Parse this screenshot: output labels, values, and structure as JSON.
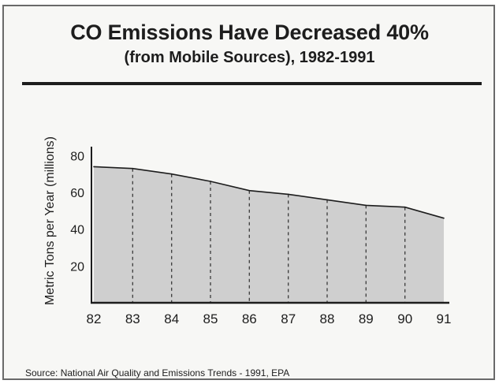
{
  "chart_data": {
    "type": "area",
    "title": "CO Emissions Have Decreased 40%",
    "subtitle": "(from Mobile Sources), 1982-1991",
    "xlabel": "",
    "ylabel": "Metric Tons per Year (millions)",
    "categories": [
      "82",
      "83",
      "84",
      "85",
      "86",
      "87",
      "88",
      "89",
      "90",
      "91"
    ],
    "series": [
      {
        "values": [
          74,
          73,
          70,
          66,
          61,
          59,
          56,
          53,
          52,
          46
        ]
      }
    ],
    "yticks": [
      20,
      40,
      60,
      80
    ],
    "ylim": [
      0,
      85
    ],
    "grid": false,
    "vertical_dashed_lines": true,
    "fill_color": "#cfcfcf",
    "line_color": "#1d1d1d"
  },
  "source": "Source: National Air Quality and Emissions Trends - 1991, EPA"
}
